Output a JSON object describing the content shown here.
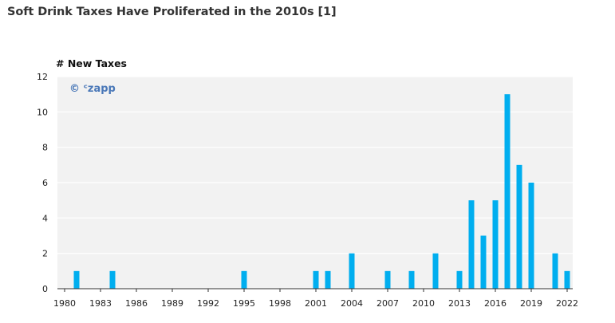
{
  "title": "Soft Drink Taxes Have Proliferated in the 2010s [1]",
  "watermark": "© ᶜzapp",
  "colors": {
    "bar": "#00aeef",
    "plot_bg": "#f2f2f2",
    "grid": "#ffffff",
    "axis": "#333333"
  },
  "chart_data": {
    "type": "bar",
    "title": "Soft Drink Taxes Have Proliferated in the 2010s [1]",
    "xlabel": "",
    "ylabel": "# New Taxes",
    "x": [
      1981,
      1984,
      1995,
      2001,
      2002,
      2004,
      2007,
      2009,
      2011,
      2013,
      2014,
      2015,
      2016,
      2017,
      2018,
      2019,
      2021,
      2022
    ],
    "values": [
      1,
      1,
      1,
      1,
      1,
      2,
      1,
      1,
      2,
      1,
      5,
      3,
      5,
      11,
      7,
      6,
      2,
      1
    ],
    "xlim": [
      1980,
      2022
    ],
    "ylim": [
      0,
      12
    ],
    "xticks": [
      "1980",
      "1983",
      "1986",
      "1989",
      "1992",
      "1995",
      "1998",
      "2001",
      "2004",
      "2007",
      "2010",
      "2013",
      "2016",
      "2019",
      "2022"
    ],
    "yticks": [
      "0",
      "2",
      "4",
      "6",
      "8",
      "10",
      "12"
    ],
    "grid": true,
    "legend": "none"
  }
}
